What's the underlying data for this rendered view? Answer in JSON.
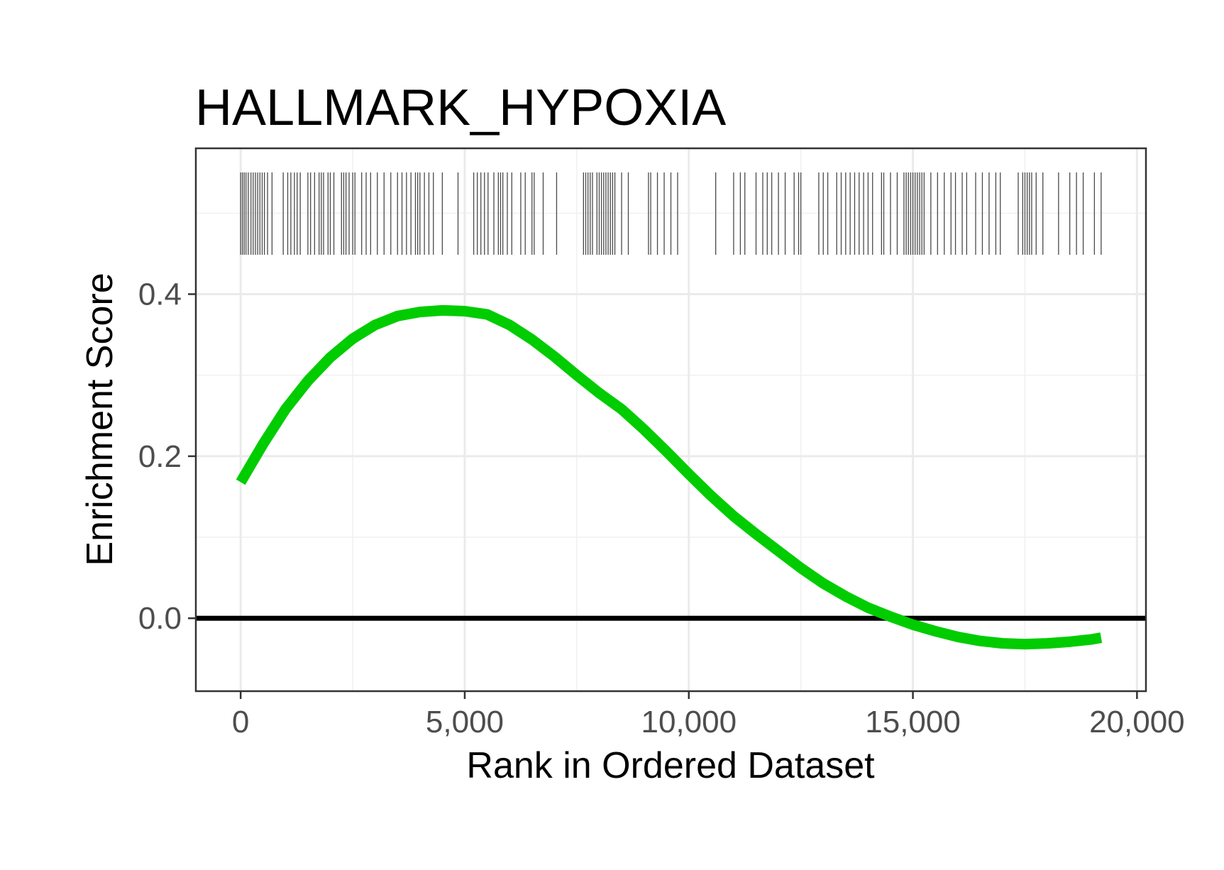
{
  "chart_data": {
    "type": "line",
    "title": "HALLMARK_HYPOXIA",
    "xlabel": "Rank in Ordered Dataset",
    "ylabel": "Enrichment Score",
    "xlim": [
      -1000,
      20200
    ],
    "ylim": [
      -0.09,
      0.58
    ],
    "x_ticks": [
      0,
      5000,
      10000,
      15000,
      20000
    ],
    "x_tick_labels": [
      "0",
      "5,000",
      "10,000",
      "15,000",
      "20,000"
    ],
    "y_ticks": [
      0.0,
      0.2,
      0.4
    ],
    "y_tick_labels": [
      "0.0",
      "0.2",
      "0.4"
    ],
    "grid": true,
    "reference_line": {
      "y": 0.0,
      "color": "#000000"
    },
    "series": [
      {
        "color": "#00cc00",
        "x": [
          0,
          500,
          1000,
          1500,
          2000,
          2500,
          3000,
          3500,
          4000,
          4500,
          5000,
          5500,
          6000,
          6500,
          7000,
          7500,
          8000,
          8500,
          9000,
          9500,
          10000,
          10500,
          11000,
          11500,
          12000,
          12500,
          13000,
          13500,
          14000,
          14500,
          15000,
          15500,
          16000,
          16500,
          17000,
          17500,
          18000,
          18500,
          19000,
          19200
        ],
        "y": [
          0.168,
          0.215,
          0.258,
          0.293,
          0.322,
          0.345,
          0.362,
          0.373,
          0.378,
          0.38,
          0.379,
          0.375,
          0.362,
          0.344,
          0.323,
          0.3,
          0.278,
          0.258,
          0.233,
          0.206,
          0.178,
          0.151,
          0.126,
          0.104,
          0.083,
          0.062,
          0.043,
          0.027,
          0.013,
          0.002,
          -0.008,
          -0.016,
          -0.023,
          -0.028,
          -0.031,
          -0.032,
          -0.031,
          -0.029,
          -0.026,
          -0.024
        ]
      }
    ],
    "gene_hits": [
      0,
      40,
      80,
      120,
      170,
      230,
      280,
      330,
      380,
      430,
      480,
      530,
      600,
      700,
      950,
      1050,
      1120,
      1200,
      1260,
      1330,
      1500,
      1560,
      1650,
      1750,
      1800,
      1850,
      1950,
      2000,
      2080,
      2250,
      2300,
      2350,
      2420,
      2500,
      2550,
      2700,
      2800,
      2900,
      3050,
      3200,
      3350,
      3500,
      3600,
      3700,
      3800,
      3900,
      3950,
      4000,
      4100,
      4200,
      4300,
      4500,
      4850,
      5200,
      5280,
      5360,
      5440,
      5520,
      5650,
      5750,
      5800,
      5850,
      5950,
      6050,
      6250,
      6350,
      6500,
      6550,
      6750,
      7050,
      7650,
      7700,
      7750,
      7800,
      7850,
      7950,
      8000,
      8050,
      8100,
      8150,
      8200,
      8250,
      8300,
      8350,
      8500,
      8650,
      9100,
      9150,
      9300,
      9450,
      9600,
      9750,
      10600,
      11000,
      11150,
      11250,
      11500,
      11650,
      11750,
      11850,
      12000,
      12150,
      12350,
      12450,
      12500,
      12900,
      13000,
      13100,
      13300,
      13400,
      13500,
      13600,
      13700,
      13800,
      13900,
      14000,
      14100,
      14300,
      14350,
      14500,
      14650,
      14800,
      14850,
      14900,
      14950,
      15000,
      15050,
      15100,
      15150,
      15200,
      15250,
      15400,
      15550,
      15700,
      15850,
      15950,
      16100,
      16200,
      16400,
      16550,
      16700,
      16850,
      16950,
      17350,
      17450,
      17500,
      17550,
      17600,
      17650,
      17750,
      17900,
      18250,
      18500,
      18650,
      18800,
      19050,
      19200
    ]
  }
}
